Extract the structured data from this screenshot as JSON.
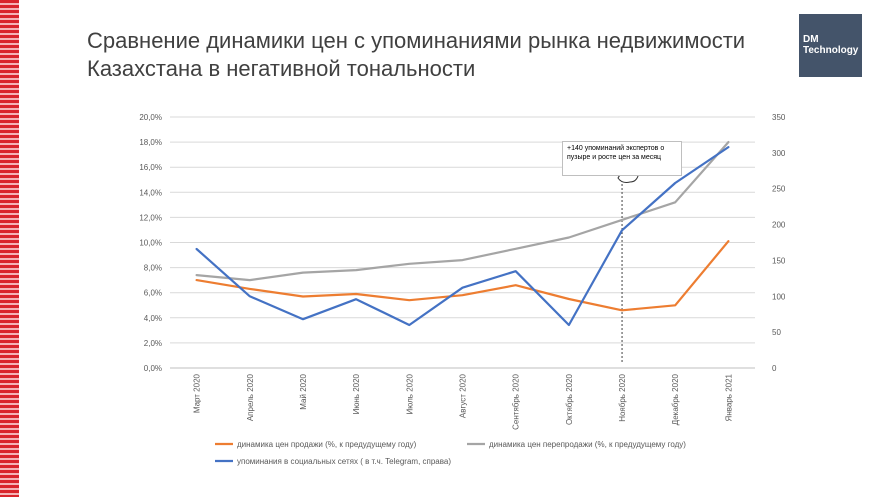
{
  "header": {
    "title_line1": "Сравнение динамики цен с упоминаниями рынка недвижимости",
    "title_line2": "Казахстана в негативной тональности",
    "logo_line1": "DM",
    "logo_line2": "Technology"
  },
  "colors": {
    "stripe": "#d9252b",
    "logo_bg": "#44546a",
    "series_primary": "#ed7d31",
    "series_resale": "#a5a5a5",
    "series_mentions": "#4472c4"
  },
  "chart_data": {
    "type": "line",
    "categories": [
      "Март 2020",
      "Апрель 2020",
      "Май 2020",
      "Июнь 2020",
      "Июль 2020",
      "Август 2020",
      "Сентябрь 2020",
      "Октябрь 2020",
      "Ноябрь 2020",
      "Декабрь 2020",
      "Январь 2021"
    ],
    "y_left": {
      "min": 0,
      "max": 20,
      "ticks": [
        "0,0%",
        "2,0%",
        "4,0%",
        "6,0%",
        "8,0%",
        "10,0%",
        "12,0%",
        "14,0%",
        "16,0%",
        "18,0%",
        "20,0%"
      ]
    },
    "y_right": {
      "min": 0,
      "max": 350,
      "ticks": [
        "0",
        "50",
        "100",
        "150",
        "200",
        "250",
        "300",
        "350"
      ]
    },
    "grid": true,
    "series": [
      {
        "name": "динамика цен продажи (%, к предудущему году)",
        "axis": "left",
        "color": "#ed7d31",
        "values": [
          7.0,
          6.3,
          5.7,
          5.9,
          5.4,
          5.8,
          6.6,
          5.5,
          4.6,
          5.0,
          10.1
        ]
      },
      {
        "name": "динамика цен перепродажи (%, к предудущему году)",
        "axis": "left",
        "color": "#a5a5a5",
        "values": [
          7.4,
          7.0,
          7.6,
          7.8,
          8.3,
          8.6,
          9.5,
          10.4,
          11.8,
          13.2,
          18.0
        ]
      },
      {
        "name": "упоминания в социальных сетях ( в т.ч. Telegram, справа)",
        "axis": "right",
        "color": "#4472c4",
        "values": [
          166,
          100,
          68,
          96,
          60,
          112,
          135,
          60,
          192,
          258,
          308
        ]
      }
    ],
    "annotation": {
      "text": "+140 упоминаний экспертов о пузыре и росте цен за месяц",
      "category": "Ноябрь 2020"
    }
  }
}
